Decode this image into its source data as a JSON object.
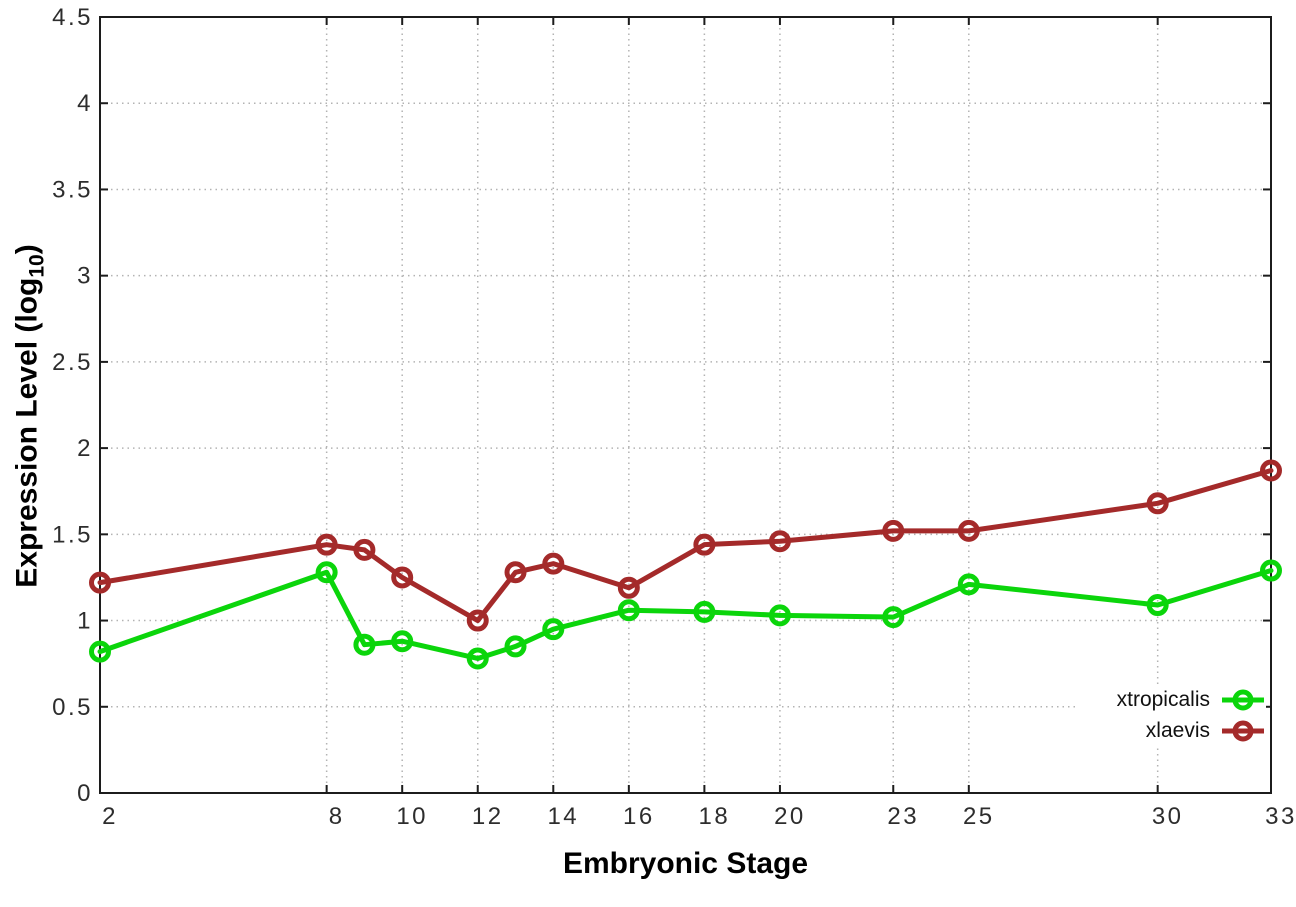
{
  "chart_data": {
    "type": "line",
    "title": "",
    "xlabel": "Embryonic Stage",
    "ylabel_prefix": "Expression Level (log",
    "ylabel_sub": "10",
    "ylabel_suffix": ")",
    "x": [
      2,
      8,
      9,
      10,
      12,
      13,
      14,
      16,
      18,
      20,
      23,
      25,
      30,
      33
    ],
    "series": [
      {
        "name": "xtropicalis",
        "color": "#0bd50b",
        "marker": "open-circle",
        "values": [
          0.82,
          1.28,
          0.86,
          0.88,
          0.78,
          0.85,
          0.95,
          1.06,
          1.05,
          1.03,
          1.02,
          1.21,
          1.09,
          1.29
        ]
      },
      {
        "name": "xlaevis",
        "color": "#a42a2a",
        "marker": "open-circle",
        "values": [
          1.22,
          1.44,
          1.41,
          1.25,
          1.0,
          1.28,
          1.33,
          1.19,
          1.44,
          1.46,
          1.52,
          1.52,
          1.68,
          1.87
        ]
      }
    ],
    "xlim": [
      2,
      33
    ],
    "ylim": [
      0,
      4.5
    ],
    "xticks": [
      "2",
      "8",
      "10",
      "12",
      "14",
      "16",
      "18",
      "20",
      "23",
      "25",
      "30",
      "33"
    ],
    "yticks": [
      "0",
      "0.5",
      "1",
      "1.5",
      "2",
      "2.5",
      "3",
      "3.5",
      "4",
      "4.5"
    ],
    "grid": "dotted",
    "grid_color": "#b3b3b3",
    "axis_color": "#1c1c1c",
    "legend_position": "inside-bottom-right"
  }
}
